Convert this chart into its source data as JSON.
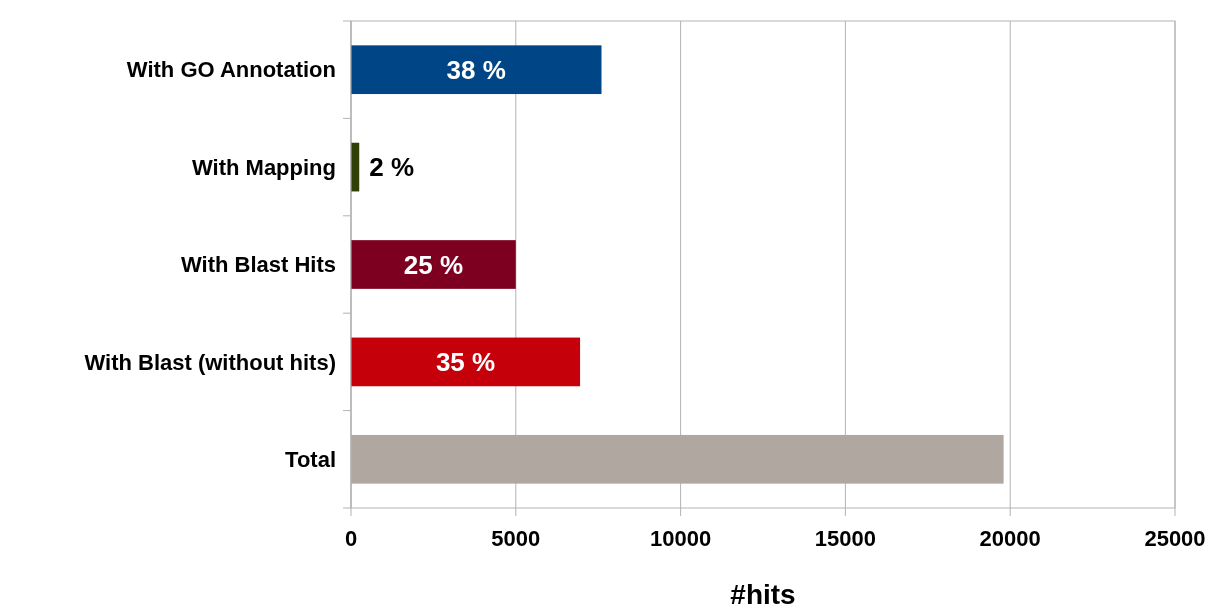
{
  "chart_data": {
    "type": "bar",
    "orientation": "horizontal",
    "xlabel": "#hits",
    "categories": [
      "With GO Annotation",
      "With Mapping",
      "With Blast Hits",
      "With Blast (without hits)",
      "Total"
    ],
    "values": [
      7600,
      250,
      5000,
      6950,
      19800
    ],
    "colors": [
      "#004586",
      "#314004",
      "#7e0021",
      "#c5000b",
      "#b0a8a0"
    ],
    "annotations": [
      "38 %",
      {
        "text": "2 %",
        "x": 250,
        "y": "With Mapping"
      },
      "25 %",
      "35 %"
    ],
    "xlim": [
      0,
      25000
    ],
    "xticks": [
      0,
      5000,
      10000,
      15000,
      20000,
      25000
    ],
    "grid": "x"
  }
}
